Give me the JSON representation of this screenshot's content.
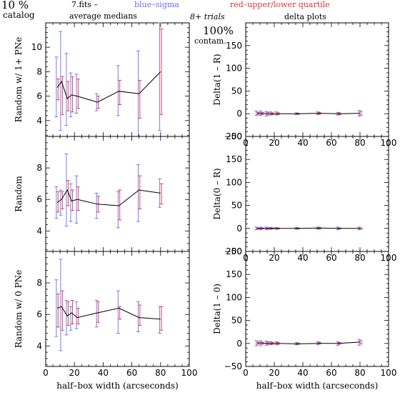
{
  "header": {
    "percent": "10 %",
    "catalog": "catalog",
    "fits": "7.fits  –",
    "average_medians": "average medians",
    "blue_sigma": "blue–sigma",
    "red_quartile": "red–upper/lower quartile",
    "trials": "8+ trials",
    "delta_plots": "delta plots",
    "contam_pct": "100%",
    "contam": "contam."
  },
  "colors": {
    "sigma": "#6a6aff",
    "quartile": "#e0303a",
    "line": "#000000"
  },
  "chart_data": [
    {
      "type": "line",
      "panel": "random-1pne",
      "ylabel": "Random w/ 1+ PNe",
      "xlabel": "",
      "xlim": [
        0,
        100
      ],
      "ylim": [
        2.7,
        12
      ],
      "yticks": [
        4,
        6,
        8,
        10
      ],
      "xticks": [
        0,
        20,
        40,
        60,
        80,
        100
      ],
      "show_xticklabels": false,
      "x": [
        8,
        11,
        15,
        18,
        22,
        36,
        51,
        65,
        80
      ],
      "y": [
        6.7,
        7.2,
        5.8,
        6.1,
        6.0,
        5.5,
        6.4,
        6.2,
        8.0
      ],
      "sigma_low": [
        4.3,
        3.2,
        3.6,
        4.3,
        4.6,
        4.8,
        4.4,
        2.7,
        3.2
      ],
      "sigma_high": [
        9.2,
        11.3,
        9.5,
        7.9,
        7.8,
        6.2,
        8.5,
        9.7,
        12.0
      ],
      "quart_low": [
        5.7,
        4.5,
        4.8,
        4.7,
        5.0,
        5.0,
        5.3,
        4.2,
        4.5
      ],
      "quart_high": [
        7.4,
        7.6,
        7.2,
        7.6,
        7.4,
        6.0,
        7.3,
        7.3,
        11.5
      ]
    },
    {
      "type": "line",
      "panel": "random",
      "ylabel": "Random",
      "xlabel": "",
      "xlim": [
        0,
        100
      ],
      "ylim": [
        2.7,
        10
      ],
      "yticks": [
        4,
        6,
        8
      ],
      "xticks": [
        0,
        20,
        40,
        60,
        80,
        100
      ],
      "show_xticklabels": false,
      "x": [
        8,
        11,
        15,
        18,
        22,
        36,
        51,
        65,
        80
      ],
      "y": [
        5.8,
        6.0,
        6.6,
        5.9,
        6.0,
        5.7,
        5.6,
        6.6,
        6.4
      ],
      "sigma_low": [
        4.8,
        5.0,
        4.3,
        4.6,
        4.5,
        4.8,
        4.2,
        4.6,
        5.5
      ],
      "sigma_high": [
        6.8,
        6.6,
        8.9,
        7.0,
        7.5,
        6.4,
        6.5,
        8.2,
        7.3
      ],
      "quart_low": [
        5.2,
        5.4,
        5.6,
        5.3,
        5.3,
        5.2,
        4.7,
        5.4,
        5.7
      ],
      "quart_high": [
        6.5,
        6.5,
        7.2,
        6.6,
        6.8,
        6.2,
        6.6,
        7.5,
        7.0
      ]
    },
    {
      "type": "line",
      "panel": "random-0pne",
      "ylabel": "Random w/ 0 PNe",
      "xlabel": "half–box width (arcseconds)",
      "xlim": [
        0,
        100
      ],
      "ylim": [
        2.7,
        10
      ],
      "yticks": [
        4,
        6,
        8
      ],
      "xticks": [
        0,
        20,
        40,
        60,
        80,
        100
      ],
      "show_xticklabels": true,
      "x": [
        8,
        11,
        15,
        18,
        22,
        36,
        51,
        65,
        80
      ],
      "y": [
        6.4,
        6.5,
        5.9,
        6.1,
        5.8,
        6.1,
        6.4,
        5.8,
        5.7
      ],
      "sigma_low": [
        4.6,
        3.7,
        4.7,
        5.0,
        5.1,
        5.2,
        4.8,
        4.9,
        4.8
      ],
      "sigma_high": [
        8.2,
        9.5,
        6.9,
        6.5,
        6.8,
        6.9,
        7.5,
        6.8,
        6.5
      ],
      "quart_low": [
        5.2,
        5.0,
        5.3,
        5.4,
        5.4,
        5.5,
        5.7,
        5.3,
        5.0
      ],
      "quart_high": [
        7.3,
        7.5,
        6.8,
        6.9,
        6.4,
        6.8,
        6.5,
        6.6,
        6.5
      ]
    },
    {
      "type": "line",
      "panel": "delta-1-r",
      "ylabel": "Delta(1 – R)",
      "xlabel": "",
      "xlim": [
        0,
        100
      ],
      "ylim": [
        -50,
        200
      ],
      "yticks": [
        -50,
        0,
        50,
        100,
        150
      ],
      "xticks": [
        0,
        20,
        40,
        60,
        80,
        100
      ],
      "show_xticklabels": true,
      "x": [
        8,
        11,
        15,
        18,
        22,
        36,
        51,
        65,
        80
      ],
      "y": [
        1,
        1,
        0,
        0,
        0,
        0,
        1,
        0,
        1
      ],
      "sigma_low": [
        -4,
        -4,
        -5,
        -3,
        -3,
        -2,
        -2,
        -3,
        -5
      ],
      "sigma_high": [
        6,
        6,
        5,
        4,
        4,
        2,
        4,
        3,
        7
      ],
      "quart_low": [
        -2,
        -2,
        -3,
        -2,
        -2,
        -1,
        -1,
        -2,
        -3
      ],
      "quart_high": [
        3,
        3,
        3,
        2,
        2,
        1,
        3,
        2,
        5
      ]
    },
    {
      "type": "line",
      "panel": "delta-0-r",
      "ylabel": "Delta(0 – R)",
      "xlabel": "",
      "xlim": [
        0,
        100
      ],
      "ylim": [
        -50,
        200
      ],
      "yticks": [
        -50,
        0,
        50,
        100,
        150,
        200
      ],
      "xticks": [
        0,
        20,
        40,
        60,
        80,
        100
      ],
      "show_xticklabels": true,
      "x": [
        8,
        11,
        15,
        18,
        22,
        36,
        51,
        65,
        80
      ],
      "y": [
        0,
        0,
        0,
        0,
        0,
        0,
        1,
        0,
        0
      ],
      "sigma_low": [
        -3,
        -3,
        -3,
        -2,
        -2,
        -2,
        -2,
        -3,
        -3
      ],
      "sigma_high": [
        3,
        3,
        3,
        2,
        2,
        2,
        3,
        3,
        3
      ],
      "quart_low": [
        -1,
        -1,
        -1,
        -1,
        -1,
        -1,
        -1,
        -1,
        -1
      ],
      "quart_high": [
        1,
        1,
        1,
        1,
        1,
        1,
        2,
        1,
        1
      ]
    },
    {
      "type": "line",
      "panel": "delta-1-0",
      "ylabel": "Delta(1 – 0)",
      "xlabel": "half–box width (arcseconds)",
      "xlim": [
        0,
        100
      ],
      "ylim": [
        -50,
        200
      ],
      "yticks": [
        -50,
        0,
        50,
        100,
        150,
        200
      ],
      "xticks": [
        0,
        20,
        40,
        60,
        80,
        100
      ],
      "show_xticklabels": true,
      "x": [
        8,
        11,
        15,
        18,
        22,
        36,
        51,
        65,
        80
      ],
      "y": [
        1,
        1,
        0,
        0,
        0,
        -1,
        0,
        0,
        3
      ],
      "sigma_low": [
        -5,
        -5,
        -4,
        -3,
        -3,
        -3,
        -3,
        -4,
        -4
      ],
      "sigma_high": [
        6,
        6,
        5,
        4,
        4,
        2,
        4,
        4,
        9
      ],
      "quart_low": [
        -2,
        -2,
        -2,
        -2,
        -2,
        -2,
        -1,
        -2,
        -1
      ],
      "quart_high": [
        3,
        3,
        3,
        2,
        2,
        1,
        2,
        2,
        6
      ]
    }
  ]
}
